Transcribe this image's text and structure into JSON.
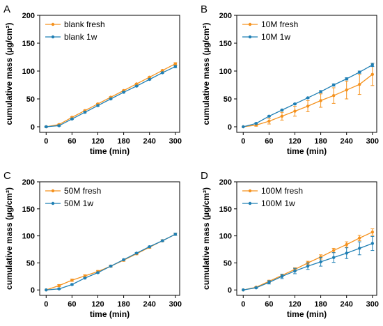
{
  "colors": {
    "fresh": "#F5921E",
    "one_week": "#1F7FB4",
    "axis": "#000000"
  },
  "chart_data": [
    {
      "panel": "A",
      "type": "line",
      "xlabel": "time (min)",
      "ylabel": "cumulative mass (µg/cm²)",
      "xlim": [
        -15,
        310
      ],
      "ylim": [
        -10,
        200
      ],
      "xticks": [
        0,
        60,
        120,
        180,
        240,
        300
      ],
      "yticks": [
        0,
        50,
        100,
        150,
        200
      ],
      "legend_position": "top-left",
      "series": [
        {
          "name": "blank fresh",
          "color": "#F5921E",
          "x": [
            0,
            30,
            60,
            90,
            120,
            150,
            180,
            210,
            240,
            270,
            300
          ],
          "y": [
            0,
            4,
            17,
            29,
            41,
            53,
            65,
            77,
            89,
            101,
            113
          ],
          "err": [
            1,
            1,
            1,
            1,
            1,
            1,
            1,
            1,
            1,
            1,
            2
          ]
        },
        {
          "name": "blank 1w",
          "color": "#1F7FB4",
          "x": [
            0,
            30,
            60,
            90,
            120,
            150,
            180,
            210,
            240,
            270,
            300
          ],
          "y": [
            0,
            2,
            14,
            26,
            38,
            50,
            62,
            73,
            85,
            97,
            108
          ],
          "err": [
            1,
            1,
            1,
            1,
            1,
            1,
            1,
            1,
            1,
            1,
            2
          ]
        }
      ]
    },
    {
      "panel": "B",
      "type": "line",
      "xlabel": "time (min)",
      "ylabel": "cumulative mass (µg/cm²)",
      "xlim": [
        -15,
        310
      ],
      "ylim": [
        -10,
        200
      ],
      "xticks": [
        0,
        60,
        120,
        180,
        240,
        300
      ],
      "yticks": [
        0,
        50,
        100,
        150,
        200
      ],
      "legend_position": "top-left",
      "series": [
        {
          "name": "10M fresh",
          "color": "#F5921E",
          "x": [
            0,
            30,
            60,
            90,
            120,
            150,
            180,
            210,
            240,
            270,
            300
          ],
          "y": [
            0,
            3,
            10,
            19,
            28,
            37,
            47,
            56,
            66,
            76,
            94
          ],
          "err": [
            0,
            2,
            5,
            7,
            9,
            10,
            12,
            14,
            16,
            18,
            20
          ]
        },
        {
          "name": "10M 1w",
          "color": "#1F7FB4",
          "x": [
            0,
            30,
            60,
            90,
            120,
            150,
            180,
            210,
            240,
            270,
            300
          ],
          "y": [
            0,
            6,
            19,
            30,
            41,
            52,
            63,
            75,
            86,
            98,
            111
          ],
          "err": [
            0,
            1,
            1,
            1,
            1,
            1,
            2,
            2,
            2,
            2,
            3
          ]
        }
      ]
    },
    {
      "panel": "C",
      "type": "line",
      "xlabel": "time (min)",
      "ylabel": "cumulative mass (µg/cm²)",
      "xlim": [
        -15,
        310
      ],
      "ylim": [
        -10,
        200
      ],
      "xticks": [
        0,
        60,
        120,
        180,
        240,
        300
      ],
      "yticks": [
        0,
        50,
        100,
        150,
        200
      ],
      "legend_position": "top-left",
      "series": [
        {
          "name": "50M fresh",
          "color": "#F5921E",
          "x": [
            0,
            30,
            60,
            90,
            120,
            150,
            180,
            210,
            240,
            270,
            300
          ],
          "y": [
            0,
            8,
            18,
            26,
            34,
            44,
            55,
            67,
            79,
            91,
            103
          ],
          "err": [
            0,
            2,
            2,
            2,
            2,
            2,
            2,
            2,
            2,
            2,
            2
          ]
        },
        {
          "name": "50M 1w",
          "color": "#1F7FB4",
          "x": [
            0,
            30,
            60,
            90,
            120,
            150,
            180,
            210,
            240,
            270,
            300
          ],
          "y": [
            0,
            2,
            10,
            22,
            32,
            44,
            56,
            68,
            80,
            91,
            103
          ],
          "err": [
            0,
            1,
            1,
            1,
            1,
            1,
            1,
            1,
            1,
            1,
            2
          ]
        }
      ]
    },
    {
      "panel": "D",
      "type": "line",
      "xlabel": "time (min)",
      "ylabel": "cumulative mass (µg/cm²)",
      "xlim": [
        -15,
        310
      ],
      "ylim": [
        -10,
        200
      ],
      "xticks": [
        0,
        60,
        120,
        180,
        240,
        300
      ],
      "yticks": [
        0,
        50,
        100,
        150,
        200
      ],
      "legend_position": "top-left",
      "series": [
        {
          "name": "100M fresh",
          "color": "#F5921E",
          "x": [
            0,
            30,
            60,
            90,
            120,
            150,
            180,
            210,
            240,
            270,
            300
          ],
          "y": [
            0,
            5,
            16,
            27,
            38,
            50,
            61,
            73,
            84,
            96,
            107
          ],
          "err": [
            0,
            1,
            2,
            2,
            3,
            3,
            4,
            4,
            5,
            5,
            6
          ]
        },
        {
          "name": "100M 1w",
          "color": "#1F7FB4",
          "x": [
            0,
            30,
            60,
            90,
            120,
            150,
            180,
            210,
            240,
            270,
            300
          ],
          "y": [
            0,
            4,
            14,
            25,
            35,
            44,
            52,
            60,
            68,
            77,
            86
          ],
          "err": [
            0,
            1,
            3,
            4,
            5,
            6,
            8,
            9,
            10,
            12,
            13
          ]
        }
      ]
    }
  ]
}
